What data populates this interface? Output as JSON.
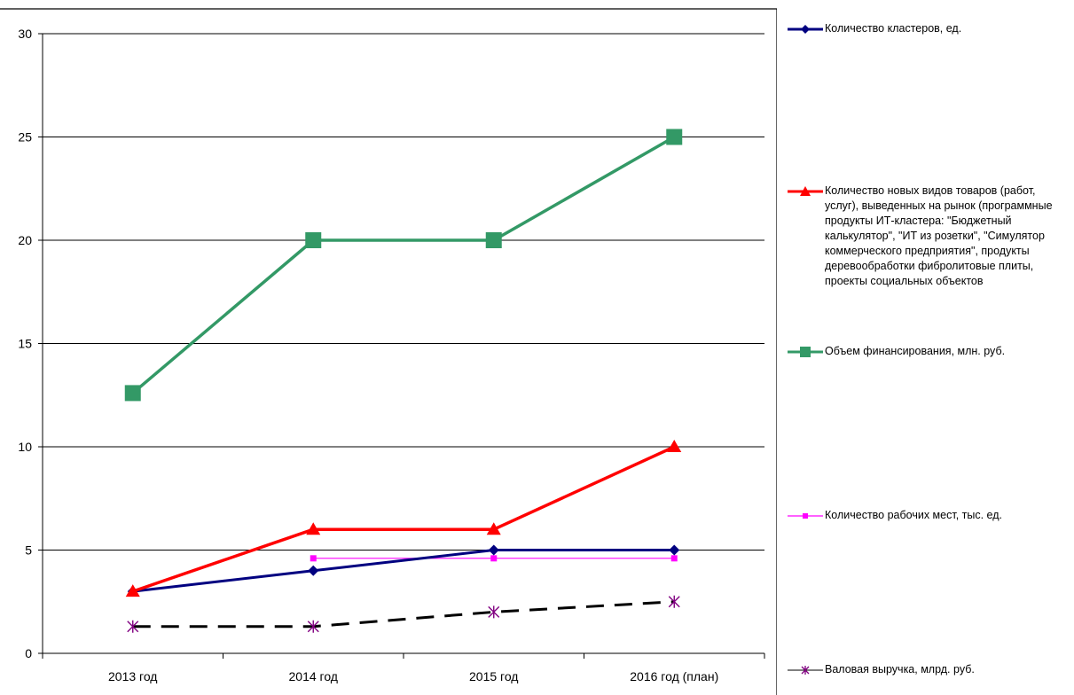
{
  "chart_data": {
    "type": "line",
    "categories": [
      "2013 год",
      "2014 год",
      "2015 год",
      "2016 год (план)"
    ],
    "ylim": [
      0,
      30
    ],
    "yticks": [
      0,
      5,
      10,
      15,
      20,
      25,
      30
    ],
    "grid": true,
    "legend_position": "right",
    "series": [
      {
        "name": "Количество кластеров, ед.",
        "values": [
          3,
          4,
          5,
          5
        ],
        "color": "#000080",
        "marker": "diamond",
        "dash": "solid"
      },
      {
        "name": "Количество новых видов товаров (работ, услуг), выведенных на рынок (программные продукты ИТ-кластера: \"Бюджетный калькулятор\", \"ИТ из розетки\", \"Симулятор коммерческого предприятия\", продукты деревообработки фибролитовые плиты, проекты социальных объектов",
        "values": [
          3,
          6,
          6,
          10
        ],
        "color": "#ff0000",
        "marker": "triangle",
        "dash": "solid"
      },
      {
        "name": "Объем финансирования, млн. руб.",
        "values": [
          12.6,
          20,
          20,
          25
        ],
        "color": "#339966",
        "marker": "square",
        "dash": "solid"
      },
      {
        "name": "Количество рабочих мест, тыс. ед.",
        "values": [
          null,
          4.6,
          4.6,
          4.6
        ],
        "color": "#ff00ff",
        "marker": "small-square",
        "dash": "solid"
      },
      {
        "name": "Валовая выручка, млрд. руб.",
        "values": [
          1.3,
          1.3,
          2,
          2.5
        ],
        "color": "#000000",
        "marker_color": "#800080",
        "marker": "star",
        "dash": "dashed"
      }
    ]
  }
}
